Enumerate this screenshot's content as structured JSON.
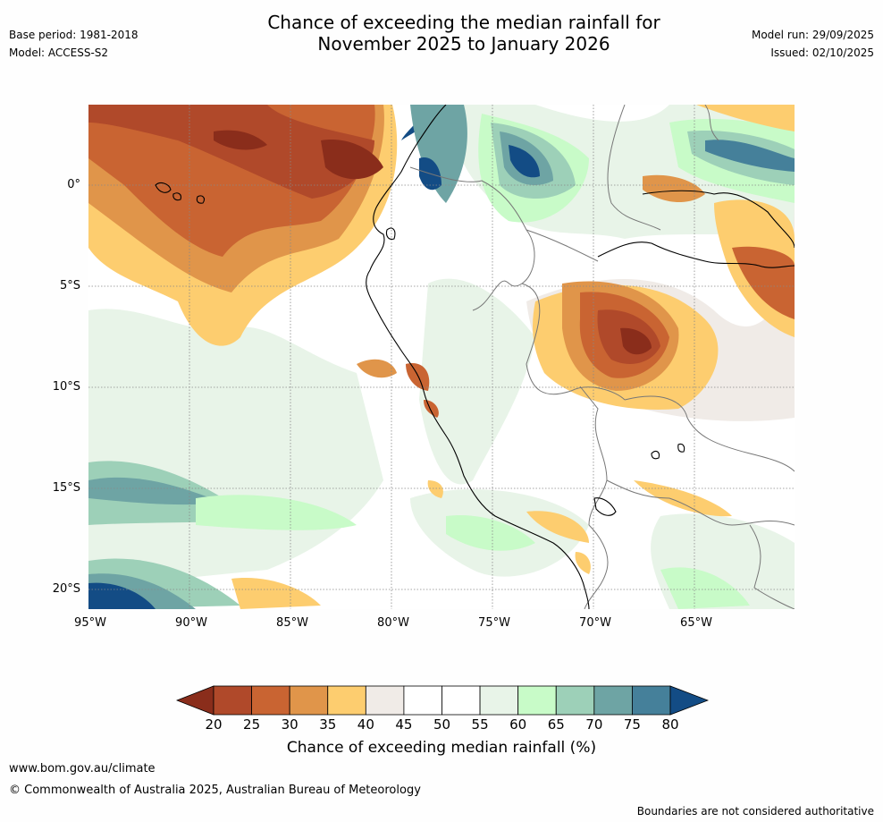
{
  "title": {
    "line1": "Chance of exceeding the median rainfall for",
    "line2": "November 2025 to January 2026"
  },
  "meta_left": {
    "base_period": "Base period: 1981-2018",
    "model": "Model: ACCESS-S2"
  },
  "meta_right": {
    "model_run": "Model run: 29/09/2025",
    "issued": "Issued: 02/10/2025"
  },
  "map": {
    "lat_labels": [
      "0°",
      "5°S",
      "10°S",
      "15°S",
      "20°S"
    ],
    "lon_labels": [
      "95°W",
      "90°W",
      "85°W",
      "80°W",
      "75°W",
      "70°W",
      "65°W"
    ],
    "lon_range": [
      -95,
      -60
    ],
    "lat_range": [
      -21,
      4
    ]
  },
  "colorbar": {
    "ticks": [
      "20",
      "25",
      "30",
      "35",
      "40",
      "45",
      "50",
      "55",
      "60",
      "65",
      "70",
      "75",
      "80"
    ],
    "colors": [
      "#8a2d1b",
      "#b0492a",
      "#c96432",
      "#e0954a",
      "#fdcd6f",
      "#f0ebe7",
      "#ffffff",
      "#ffffff",
      "#e8f4e8",
      "#c8fbc8",
      "#9dd0b8",
      "#6ea4a4",
      "#45809a",
      "#134c85"
    ],
    "label": "Chance of exceeding median rainfall (%)"
  },
  "footer": {
    "url": "www.bom.gov.au/climate",
    "copyright": "© Commonwealth of Australia 2025, Australian Bureau of Meteorology",
    "note": "Boundaries are not considered authoritative"
  }
}
